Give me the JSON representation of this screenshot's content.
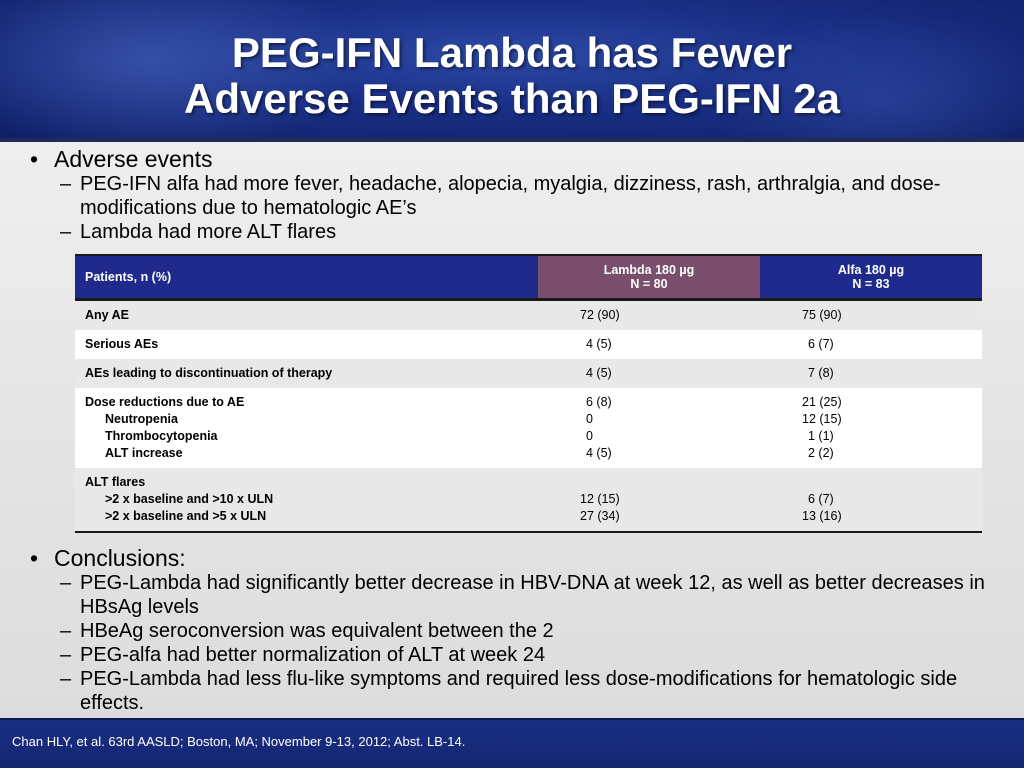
{
  "title": {
    "line1": "PEG-IFN Lambda has Fewer",
    "line2": "Adverse Events than PEG-IFN 2a"
  },
  "section1": {
    "heading": "Adverse events",
    "items": [
      "PEG-IFN alfa had more fever, headache, alopecia, myalgia, dizziness, rash, arthralgia, and dose-modifications due to hematologic AE’s",
      "Lambda had more ALT flares"
    ]
  },
  "table": {
    "headers": {
      "patients": "Patients, n (%)",
      "lambda_line1": "Lambda 180 µg",
      "lambda_line2": "N = 80",
      "alfa_line1": "Alfa 180 µg",
      "alfa_line2": "N = 83"
    },
    "rows": [
      {
        "label": "Any AE",
        "lambda": "72 (90)",
        "alfa": "75 (90)"
      },
      {
        "label": "Serious AEs",
        "lambda": "4 (5)",
        "alfa": "6 (7)"
      },
      {
        "label": "AEs leading to discontinuation of therapy",
        "lambda": "4 (5)",
        "alfa": "7 (8)"
      }
    ],
    "dose": {
      "label": "Dose reductions due to AE",
      "lambda": "6 (8)",
      "alfa": "21 (25)",
      "subs": [
        {
          "label": "Neutropenia",
          "lambda": "0",
          "alfa": "12 (15)"
        },
        {
          "label": "Thrombocytopenia",
          "lambda": "0",
          "alfa": "1 (1)"
        },
        {
          "label": "ALT increase",
          "lambda": "4 (5)",
          "alfa": "2 (2)"
        }
      ]
    },
    "alt": {
      "label": "ALT flares",
      "subs": [
        {
          "label": ">2 x baseline and >10 x ULN",
          "lambda": "12 (15)",
          "alfa": "6 (7)"
        },
        {
          "label": ">2 x baseline and >5 x ULN",
          "lambda": "27 (34)",
          "alfa": "13 (16)"
        }
      ]
    }
  },
  "section2": {
    "heading": "Conclusions:",
    "items": [
      "PEG-Lambda had significantly better decrease in HBV-DNA at week 12, as well as better decreases in HBsAg levels",
      "HBeAg seroconversion was equivalent between the 2",
      "PEG-alfa had better normalization of ALT at week 24",
      "PEG-Lambda had less flu-like symptoms and required less dose-modifications for hematologic side effects."
    ]
  },
  "footer": {
    "citation": "Chan HLY, et al. 63rd AASLD; Boston, MA; November 9-13, 2012; Abst. LB-14."
  }
}
